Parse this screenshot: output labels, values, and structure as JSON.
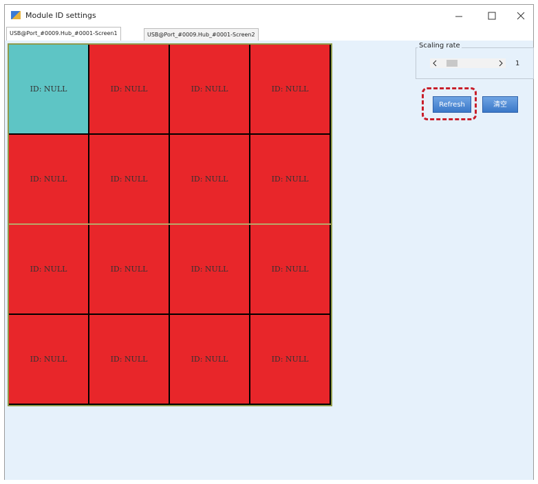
{
  "window": {
    "title": "Module ID settings"
  },
  "tabs": [
    "USB@Port_#0009.Hub_#0001-Screen1",
    "USB@Port_#0009.Hub_#0001-Screen2"
  ],
  "grid": {
    "rows": [
      [
        "ID: NULL",
        "ID: NULL",
        "ID: NULL",
        "ID: NULL"
      ],
      [
        "ID: NULL",
        "ID: NULL",
        "ID: NULL",
        "ID: NULL"
      ],
      [
        "ID: NULL",
        "ID: NULL",
        "ID: NULL",
        "ID: NULL"
      ],
      [
        "ID: NULL",
        "ID: NULL",
        "ID: NULL",
        "ID: NULL"
      ]
    ]
  },
  "scaling": {
    "label": "Scaling rate",
    "value": "1"
  },
  "buttons": {
    "refresh": "Refresh",
    "clear": "清空"
  }
}
